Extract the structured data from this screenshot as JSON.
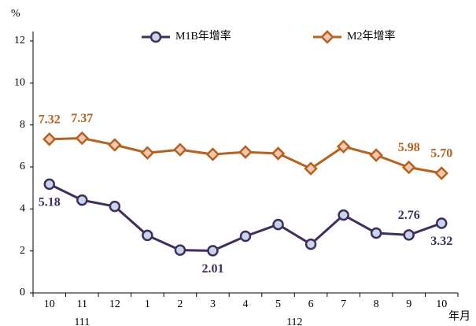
{
  "chart_data": {
    "type": "line",
    "y_unit": "%",
    "x_unit": "年月",
    "categories": [
      "10",
      "11",
      "12",
      "1",
      "2",
      "3",
      "4",
      "5",
      "6",
      "7",
      "8",
      "9",
      "10"
    ],
    "x_group_labels": [
      "111",
      "112"
    ],
    "x_group_spans": [
      [
        0,
        2
      ],
      [
        3,
        12
      ]
    ],
    "series": [
      {
        "name": "M1B年增率",
        "color": "#3f2e5e",
        "marker_fill": "#c6d6e8",
        "marker": "circle",
        "values": [
          5.18,
          4.42,
          4.12,
          2.74,
          2.04,
          2.01,
          2.7,
          3.26,
          2.32,
          3.71,
          2.85,
          2.76,
          3.32
        ],
        "value_labels": [
          "5.18",
          null,
          null,
          null,
          null,
          "2.01",
          null,
          null,
          null,
          null,
          null,
          "2.76",
          "3.32"
        ]
      },
      {
        "name": "M2年增率",
        "color": "#b5621f",
        "marker_fill": "#f2c6b0",
        "marker": "diamond",
        "values": [
          7.32,
          7.37,
          7.05,
          6.67,
          6.82,
          6.6,
          6.71,
          6.64,
          5.92,
          6.97,
          6.56,
          5.98,
          5.7
        ],
        "value_labels": [
          "7.32",
          "7.37",
          null,
          null,
          null,
          null,
          null,
          null,
          null,
          null,
          null,
          "5.98",
          "5.70"
        ]
      }
    ],
    "ylim": [
      0,
      12
    ],
    "yticks": [
      0,
      2,
      4,
      6,
      8,
      10,
      12
    ],
    "grid": false
  }
}
